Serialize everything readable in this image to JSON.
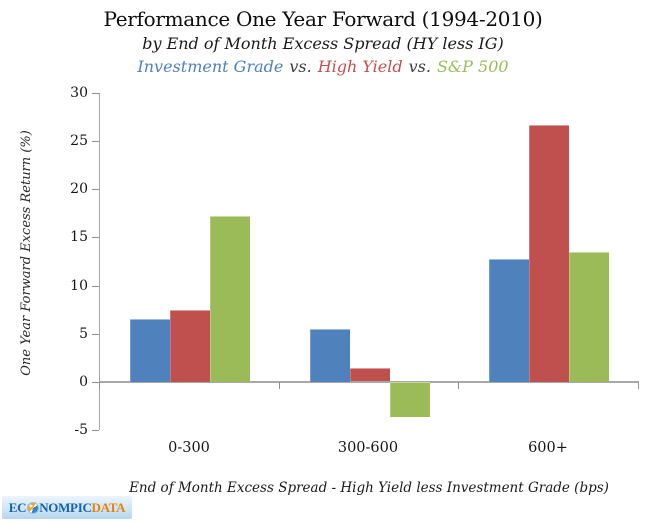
{
  "title": "Performance One Year Forward (1994-2010)",
  "subtitle": "by End of Month Excess Spread (HY less IG)",
  "legend": {
    "investment_grade": "Investment Grade",
    "vs1": "vs.",
    "high_yield": "High Yield",
    "vs2": "vs.",
    "sp500": "S&P 500"
  },
  "colors": {
    "investment_grade": "#4F81BD",
    "high_yield": "#C0504D",
    "sp500": "#9BBB59",
    "axis_line": "#A8A8A8",
    "tick": "#8F8F8F",
    "legend_vs": "#3F3F3F",
    "logo_blue": "#1563AC",
    "logo_orange": "#E8820B"
  },
  "chart_data": {
    "type": "bar",
    "title": "Performance One Year Forward (1994-2010)",
    "subtitle": "by End of Month Excess Spread (HY less IG)",
    "categories": [
      "0-300",
      "300-600",
      "600+"
    ],
    "series": [
      {
        "name": "Investment Grade",
        "color": "#4F81BD",
        "values": [
          6.5,
          5.5,
          12.8
        ]
      },
      {
        "name": "High Yield",
        "color": "#C0504D",
        "values": [
          7.5,
          1.4,
          26.7
        ]
      },
      {
        "name": "S&P 500",
        "color": "#9BBB59",
        "values": [
          17.2,
          -3.6,
          13.5
        ]
      }
    ],
    "xlabel": "End of Month Excess Spread - High Yield less Investment Grade (bps)",
    "ylabel": "One Year Forward Excess Return (%)",
    "ylim": [
      -5,
      30
    ],
    "yticks": [
      30,
      25,
      20,
      15,
      10,
      5,
      0,
      -5
    ],
    "grid": false,
    "legend_position": "top-text-line"
  },
  "watermark": {
    "prefix": "EC",
    "mid": "NOMPIC",
    "suffix": "DATA",
    "globe_icon": "globe-icon"
  }
}
